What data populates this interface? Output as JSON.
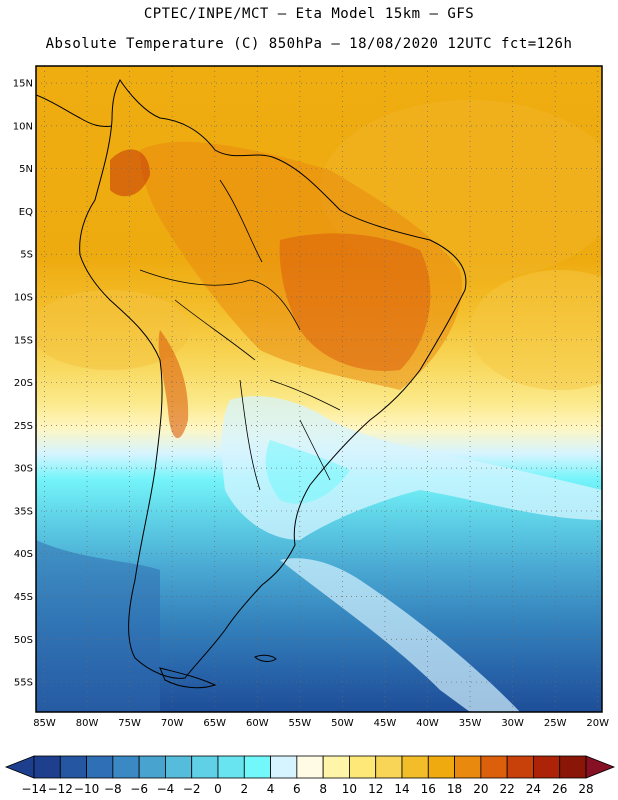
{
  "header": {
    "line1": "CPTEC/INPE/MCT –  Eta Model 15km – GFS",
    "line2": "Absolute Temperature (C) 850hPa – 18/08/2020 12UTC fct=126h"
  },
  "map": {
    "lat_labels": [
      "15N",
      "10N",
      "5N",
      "EQ",
      "5S",
      "10S",
      "15S",
      "20S",
      "25S",
      "30S",
      "35S",
      "40S",
      "45S",
      "50S",
      "55S"
    ],
    "lon_labels": [
      "85W",
      "80W",
      "75W",
      "70W",
      "65W",
      "60W",
      "55W",
      "50W",
      "45W",
      "40W",
      "35W",
      "30W",
      "25W",
      "20W"
    ],
    "extent": {
      "lon_min": -86,
      "lon_max": -19.5,
      "lat_min": -58.5,
      "lat_max": 17
    }
  },
  "colorbar": {
    "labels": [
      "-14",
      "-12",
      "-10",
      "-8",
      "-6",
      "-4",
      "-2",
      "0",
      "2",
      "4",
      "6",
      "8",
      "10",
      "12",
      "14",
      "16",
      "18",
      "20",
      "22",
      "24",
      "26",
      "28"
    ],
    "colors": [
      "#1e3f8e",
      "#2456a2",
      "#2f6fb5",
      "#3a88c4",
      "#48a3cf",
      "#56bcdb",
      "#5fd0e6",
      "#67e4f0",
      "#72f8fb",
      "#d6f4ff",
      "#fffbe5",
      "#fff5a8",
      "#fde878",
      "#f8d556",
      "#f3bd2a",
      "#eeaa0e",
      "#e98a0e",
      "#dc5f0c",
      "#c8400a",
      "#ac2308",
      "#8a1608"
    ],
    "under_color": "#1e3f8e",
    "over_color": "#861024"
  },
  "colors": {
    "ocean_north": "#ecab10",
    "ocean_south": "#1f4c95",
    "coast": "#000000"
  }
}
